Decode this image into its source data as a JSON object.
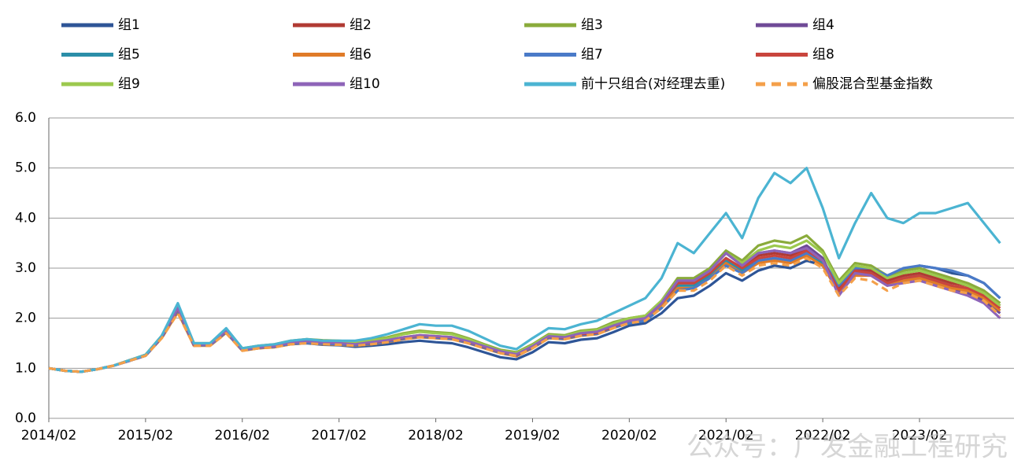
{
  "chart_data": {
    "type": "line",
    "watermark": "公众号：广发金融工程研究",
    "x": [
      "2014/02",
      "2014/04",
      "2014/06",
      "2014/08",
      "2014/10",
      "2014/12",
      "2015/02",
      "2015/04",
      "2015/06",
      "2015/08",
      "2015/10",
      "2015/12",
      "2016/02",
      "2016/04",
      "2016/06",
      "2016/08",
      "2016/10",
      "2016/12",
      "2017/02",
      "2017/04",
      "2017/06",
      "2017/08",
      "2017/10",
      "2017/12",
      "2018/02",
      "2018/04",
      "2018/06",
      "2018/08",
      "2018/10",
      "2018/12",
      "2019/02",
      "2019/04",
      "2019/06",
      "2019/08",
      "2019/10",
      "2019/12",
      "2020/02",
      "2020/04",
      "2020/06",
      "2020/08",
      "2020/10",
      "2020/12",
      "2021/02",
      "2021/04",
      "2021/06",
      "2021/08",
      "2021/10",
      "2021/12",
      "2022/02",
      "2022/04",
      "2022/06",
      "2022/08",
      "2022/10",
      "2022/12",
      "2023/02",
      "2023/04",
      "2023/06",
      "2023/08",
      "2023/10",
      "2023/12"
    ],
    "ylim": [
      0,
      6
    ],
    "yticks": [
      {
        "value": 0,
        "label": "0.0"
      },
      {
        "value": 1,
        "label": "1.0"
      },
      {
        "value": 2,
        "label": "2.0"
      },
      {
        "value": 3,
        "label": "3.0"
      },
      {
        "value": 4,
        "label": "4.0"
      },
      {
        "value": 5,
        "label": "5.0"
      },
      {
        "value": 6,
        "label": "6.0"
      }
    ],
    "grid": true,
    "series": [
      {
        "name": "组1",
        "color": "#2e5597",
        "values": [
          1.0,
          0.95,
          0.93,
          0.98,
          1.05,
          1.15,
          1.25,
          1.62,
          2.15,
          1.45,
          1.47,
          1.72,
          1.36,
          1.4,
          1.43,
          1.48,
          1.5,
          1.47,
          1.46,
          1.43,
          1.45,
          1.48,
          1.52,
          1.55,
          1.52,
          1.5,
          1.42,
          1.32,
          1.22,
          1.18,
          1.32,
          1.52,
          1.5,
          1.57,
          1.6,
          1.72,
          1.85,
          1.9,
          2.1,
          2.4,
          2.45,
          2.65,
          2.9,
          2.75,
          2.95,
          3.05,
          3.0,
          3.15,
          3.05,
          2.6,
          2.95,
          2.95,
          2.8,
          2.95,
          3.05,
          3.0,
          2.9,
          2.85,
          2.7,
          2.4
        ]
      },
      {
        "name": "组2",
        "color": "#b03a33",
        "values": [
          1.0,
          0.95,
          0.93,
          0.98,
          1.05,
          1.16,
          1.26,
          1.63,
          2.2,
          1.48,
          1.48,
          1.75,
          1.38,
          1.43,
          1.45,
          1.52,
          1.55,
          1.52,
          1.5,
          1.48,
          1.52,
          1.56,
          1.62,
          1.66,
          1.64,
          1.62,
          1.54,
          1.44,
          1.34,
          1.28,
          1.44,
          1.64,
          1.62,
          1.7,
          1.73,
          1.85,
          1.95,
          2.0,
          2.3,
          2.7,
          2.7,
          2.9,
          3.2,
          3.0,
          3.25,
          3.3,
          3.25,
          3.4,
          3.15,
          2.6,
          3.0,
          2.95,
          2.75,
          2.85,
          2.9,
          2.8,
          2.7,
          2.65,
          2.5,
          2.25
        ]
      },
      {
        "name": "组3",
        "color": "#8aab3b",
        "values": [
          1.0,
          0.95,
          0.93,
          0.98,
          1.05,
          1.16,
          1.27,
          1.65,
          2.25,
          1.5,
          1.5,
          1.78,
          1.4,
          1.45,
          1.48,
          1.55,
          1.58,
          1.56,
          1.55,
          1.53,
          1.57,
          1.62,
          1.7,
          1.75,
          1.72,
          1.7,
          1.6,
          1.48,
          1.37,
          1.32,
          1.48,
          1.68,
          1.66,
          1.75,
          1.78,
          1.92,
          2.0,
          2.05,
          2.35,
          2.8,
          2.8,
          3.0,
          3.35,
          3.15,
          3.45,
          3.55,
          3.5,
          3.65,
          3.35,
          2.75,
          3.1,
          3.05,
          2.85,
          2.95,
          3.0,
          2.9,
          2.8,
          2.7,
          2.55,
          2.3
        ]
      },
      {
        "name": "组4",
        "color": "#6f4a97",
        "values": [
          1.0,
          0.95,
          0.93,
          0.98,
          1.05,
          1.15,
          1.26,
          1.62,
          2.18,
          1.47,
          1.47,
          1.74,
          1.37,
          1.42,
          1.44,
          1.5,
          1.53,
          1.5,
          1.49,
          1.47,
          1.51,
          1.55,
          1.61,
          1.65,
          1.63,
          1.61,
          1.53,
          1.43,
          1.33,
          1.27,
          1.43,
          1.63,
          1.61,
          1.69,
          1.72,
          1.84,
          1.95,
          2.0,
          2.3,
          2.75,
          2.75,
          2.95,
          3.3,
          3.05,
          3.3,
          3.35,
          3.3,
          3.45,
          3.2,
          2.5,
          2.95,
          2.9,
          2.7,
          2.75,
          2.8,
          2.7,
          2.6,
          2.5,
          2.35,
          2.1
        ]
      },
      {
        "name": "组5",
        "color": "#2b8ea8",
        "values": [
          1.0,
          0.95,
          0.93,
          0.98,
          1.05,
          1.15,
          1.25,
          1.61,
          2.22,
          1.46,
          1.46,
          1.73,
          1.36,
          1.41,
          1.43,
          1.49,
          1.52,
          1.49,
          1.48,
          1.46,
          1.49,
          1.53,
          1.59,
          1.63,
          1.61,
          1.59,
          1.51,
          1.41,
          1.31,
          1.25,
          1.41,
          1.61,
          1.59,
          1.66,
          1.69,
          1.81,
          1.9,
          1.95,
          2.25,
          2.65,
          2.65,
          2.85,
          3.15,
          2.95,
          3.15,
          3.2,
          3.15,
          3.3,
          3.1,
          2.55,
          2.9,
          2.9,
          2.7,
          2.8,
          2.85,
          2.75,
          2.65,
          2.55,
          2.4,
          2.15
        ]
      },
      {
        "name": "组6",
        "color": "#e07b28",
        "values": [
          1.0,
          0.95,
          0.93,
          0.98,
          1.05,
          1.15,
          1.25,
          1.6,
          2.12,
          1.45,
          1.45,
          1.71,
          1.35,
          1.4,
          1.42,
          1.48,
          1.51,
          1.48,
          1.47,
          1.45,
          1.48,
          1.52,
          1.58,
          1.62,
          1.6,
          1.58,
          1.5,
          1.4,
          1.3,
          1.24,
          1.4,
          1.6,
          1.58,
          1.65,
          1.68,
          1.8,
          1.92,
          1.98,
          2.25,
          2.6,
          2.6,
          2.8,
          3.1,
          2.9,
          3.1,
          3.15,
          3.1,
          3.25,
          3.05,
          2.5,
          2.85,
          2.85,
          2.65,
          2.75,
          2.8,
          2.7,
          2.6,
          2.55,
          2.4,
          2.15
        ]
      },
      {
        "name": "组7",
        "color": "#4a7ac8",
        "values": [
          1.0,
          0.95,
          0.93,
          0.98,
          1.05,
          1.15,
          1.25,
          1.61,
          2.16,
          1.46,
          1.46,
          1.72,
          1.36,
          1.41,
          1.43,
          1.49,
          1.51,
          1.49,
          1.48,
          1.46,
          1.49,
          1.53,
          1.59,
          1.63,
          1.61,
          1.59,
          1.51,
          1.41,
          1.31,
          1.26,
          1.41,
          1.61,
          1.59,
          1.66,
          1.69,
          1.81,
          1.9,
          1.95,
          2.2,
          2.55,
          2.6,
          2.8,
          3.05,
          2.9,
          3.15,
          3.2,
          3.15,
          3.3,
          3.15,
          2.65,
          3.0,
          3.0,
          2.85,
          3.0,
          3.05,
          3.0,
          2.95,
          2.85,
          2.7,
          2.4
        ]
      },
      {
        "name": "组8",
        "color": "#c9453d",
        "values": [
          1.0,
          0.95,
          0.93,
          0.98,
          1.05,
          1.16,
          1.26,
          1.62,
          2.19,
          1.47,
          1.48,
          1.74,
          1.38,
          1.42,
          1.45,
          1.51,
          1.54,
          1.51,
          1.5,
          1.48,
          1.51,
          1.55,
          1.61,
          1.65,
          1.63,
          1.61,
          1.53,
          1.43,
          1.33,
          1.27,
          1.43,
          1.63,
          1.61,
          1.68,
          1.71,
          1.83,
          1.95,
          2.0,
          2.3,
          2.7,
          2.7,
          2.9,
          3.2,
          3.0,
          3.2,
          3.25,
          3.2,
          3.35,
          3.15,
          2.55,
          2.95,
          2.9,
          2.7,
          2.8,
          2.85,
          2.75,
          2.65,
          2.6,
          2.45,
          2.2
        ]
      },
      {
        "name": "组9",
        "color": "#9cc94e",
        "values": [
          1.0,
          0.95,
          0.93,
          0.98,
          1.05,
          1.16,
          1.27,
          1.64,
          2.23,
          1.49,
          1.49,
          1.77,
          1.39,
          1.44,
          1.47,
          1.54,
          1.57,
          1.55,
          1.54,
          1.52,
          1.56,
          1.6,
          1.68,
          1.73,
          1.7,
          1.68,
          1.58,
          1.46,
          1.35,
          1.3,
          1.46,
          1.66,
          1.64,
          1.73,
          1.76,
          1.89,
          2.0,
          2.05,
          2.35,
          2.75,
          2.75,
          2.95,
          3.3,
          3.1,
          3.35,
          3.45,
          3.4,
          3.55,
          3.3,
          2.7,
          3.05,
          3.0,
          2.8,
          2.9,
          2.95,
          2.85,
          2.75,
          2.65,
          2.5,
          2.25
        ]
      },
      {
        "name": "组10",
        "color": "#8e64b8",
        "values": [
          1.0,
          0.95,
          0.93,
          0.98,
          1.05,
          1.15,
          1.26,
          1.63,
          2.2,
          1.48,
          1.47,
          1.75,
          1.37,
          1.42,
          1.44,
          1.51,
          1.54,
          1.51,
          1.5,
          1.48,
          1.52,
          1.56,
          1.62,
          1.66,
          1.64,
          1.62,
          1.54,
          1.44,
          1.34,
          1.28,
          1.44,
          1.64,
          1.62,
          1.7,
          1.73,
          1.85,
          1.95,
          2.0,
          2.3,
          2.75,
          2.75,
          2.95,
          3.3,
          3.05,
          3.3,
          3.35,
          3.3,
          3.4,
          3.15,
          2.45,
          2.9,
          2.85,
          2.65,
          2.7,
          2.75,
          2.65,
          2.55,
          2.45,
          2.3,
          2.0
        ]
      },
      {
        "name": "前十只组合(对经理去重)",
        "color": "#4bb4d2",
        "values": [
          1.0,
          0.95,
          0.93,
          0.98,
          1.05,
          1.16,
          1.27,
          1.65,
          2.3,
          1.5,
          1.5,
          1.8,
          1.4,
          1.45,
          1.48,
          1.55,
          1.58,
          1.55,
          1.55,
          1.55,
          1.6,
          1.68,
          1.78,
          1.88,
          1.85,
          1.85,
          1.75,
          1.6,
          1.45,
          1.38,
          1.6,
          1.8,
          1.78,
          1.88,
          1.95,
          2.1,
          2.25,
          2.4,
          2.8,
          3.5,
          3.3,
          3.7,
          4.1,
          3.6,
          4.4,
          4.9,
          4.7,
          5.0,
          4.2,
          3.2,
          3.9,
          4.5,
          4.0,
          3.9,
          4.1,
          4.1,
          4.2,
          4.3,
          3.9,
          3.5
        ]
      },
      {
        "name": "偏股混合型基金指数",
        "color": "#f4a04a",
        "dashed": true,
        "values": [
          1.0,
          0.95,
          0.93,
          0.98,
          1.05,
          1.15,
          1.25,
          1.6,
          2.1,
          1.45,
          1.45,
          1.7,
          1.35,
          1.4,
          1.42,
          1.48,
          1.5,
          1.48,
          1.47,
          1.45,
          1.48,
          1.52,
          1.58,
          1.62,
          1.6,
          1.58,
          1.5,
          1.4,
          1.3,
          1.25,
          1.4,
          1.6,
          1.58,
          1.65,
          1.68,
          1.8,
          1.9,
          1.95,
          2.2,
          2.55,
          2.55,
          2.75,
          3.05,
          2.85,
          3.05,
          3.1,
          3.05,
          3.2,
          3.0,
          2.45,
          2.8,
          2.75,
          2.55,
          2.7,
          2.75,
          2.65,
          2.55,
          2.5,
          2.35,
          2.05
        ]
      }
    ]
  }
}
